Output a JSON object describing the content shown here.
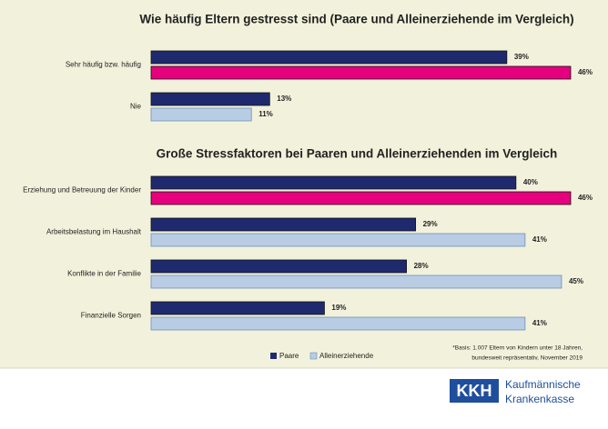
{
  "chart_data": [
    {
      "type": "bar",
      "orientation": "horizontal",
      "title": "Wie häufig Eltern gestresst sind (Paare und Alleinerziehende im Vergleich)",
      "categories": [
        "Sehr häufig bzw. häufig",
        "Nie"
      ],
      "xlim": [
        0,
        47
      ],
      "series": [
        {
          "name": "Paare",
          "color": "#1f2a6e",
          "colors": [
            "#1f2a6e",
            "#1f2a6e"
          ],
          "values": [
            39,
            13
          ],
          "value_labels": [
            "39%",
            "13%"
          ]
        },
        {
          "name": "Alleinerziehende",
          "color": "#b8cce4",
          "colors": [
            "#e6007e",
            "#b8cce4"
          ],
          "values": [
            46,
            11
          ],
          "value_labels": [
            "46%",
            "11%"
          ]
        }
      ]
    },
    {
      "type": "bar",
      "orientation": "horizontal",
      "title": "Große Stressfaktoren bei Paaren und Alleinerziehenden im Vergleich",
      "categories": [
        "Erziehung und Betreuung der Kinder",
        "Arbeitsbelastung im Haushalt",
        "Konflikte in der Familie",
        "Finanzielle Sorgen"
      ],
      "xlim": [
        0,
        47
      ],
      "series": [
        {
          "name": "Paare",
          "color": "#1f2a6e",
          "colors": [
            "#1f2a6e",
            "#1f2a6e",
            "#1f2a6e",
            "#1f2a6e"
          ],
          "values": [
            40,
            29,
            28,
            19
          ],
          "value_labels": [
            "40%",
            "29%",
            "28%",
            "19%"
          ]
        },
        {
          "name": "Alleinerziehende",
          "color": "#b8cce4",
          "colors": [
            "#e6007e",
            "#b8cce4",
            "#b8cce4",
            "#b8cce4"
          ],
          "values": [
            46,
            41,
            45,
            41
          ],
          "value_labels": [
            "46%",
            "41%",
            "45%",
            "41%"
          ]
        }
      ]
    }
  ],
  "footnote": [
    "*Basis: 1.007 Eltern von Kindern unter 18 Jahren,",
    "bundesweit repräsentativ, November 2019"
  ],
  "logo": {
    "mark": "KKH",
    "lines": [
      "Kaufmännische",
      "Krankenkasse"
    ]
  }
}
